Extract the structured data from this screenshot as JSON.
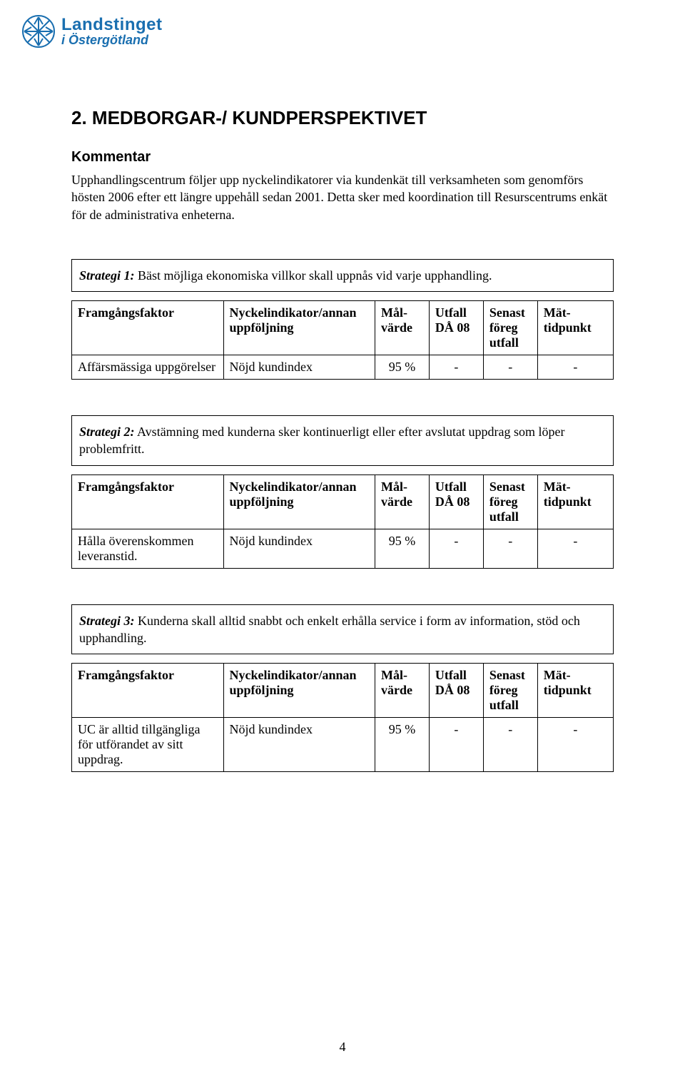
{
  "logo": {
    "line1": "Landstinget",
    "line2": "i Östergötland",
    "icon_color": "#1a6fb0"
  },
  "section": {
    "title": "2. MEDBORGAR-/ KUNDPERSPEKTIVET",
    "subheading": "Kommentar",
    "paragraph": "Upphandlingscentrum följer upp nyckelindikatorer via kundenkät till verksamheten som genomförs hösten 2006 efter ett längre uppehåll sedan 2001. Detta sker med koordination till Resurscentrums enkät för de administrativa enheterna."
  },
  "headers": {
    "framgangsfaktor": "Framgångsfaktor",
    "nyckel": "Nyckelindikator/annan uppföljning",
    "malvarde": "Mål-värde",
    "utfall": "Utfall DÅ 08",
    "senast": "Senast föreg utfall",
    "mat": "Mät-tidpunkt"
  },
  "strategies": [
    {
      "label": "Strategi 1:",
      "text": " Bäst möjliga ekonomiska villkor skall uppnås vid varje upphandling.",
      "show_headers_in_box": false,
      "row": {
        "framgang": "Affärsmässiga uppgörelser",
        "nyckel": "Nöjd kundindex",
        "mal": "95 %",
        "utfall": "-",
        "senast": "-",
        "mat": "-"
      }
    },
    {
      "label": "Strategi 2:",
      "text": " Avstämning med kunderna sker kontinuerligt eller efter avslutat uppdrag som löper problemfritt.",
      "show_headers_in_box": true,
      "row": {
        "framgang": "Hålla överenskommen leveranstid.",
        "nyckel": "Nöjd kundindex",
        "mal": "95 %",
        "utfall": "-",
        "senast": "-",
        "mat": "-"
      }
    },
    {
      "label": "Strategi 3:",
      "text": " Kunderna skall alltid snabbt och enkelt erhålla service i form av information, stöd och upphandling.",
      "show_headers_in_box": true,
      "row": {
        "framgang": "UC är alltid tillgängliga för utförandet av sitt uppdrag.",
        "nyckel": "Nöjd kundindex",
        "mal": "95 %",
        "utfall": "-",
        "senast": "-",
        "mat": "-"
      }
    }
  ],
  "page_number": "4"
}
